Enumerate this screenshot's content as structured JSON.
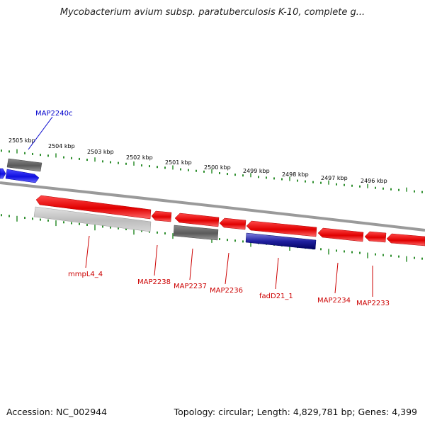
{
  "title": "Mycobacterium avium subsp. paratuberculosis K-10, complete g...",
  "footer": {
    "accession": "Accession: NC_002944",
    "summary": "Topology: circular; Length: 4,829,781 bp; Genes: 4,399"
  },
  "colors": {
    "forward_gene": "#1010e0",
    "reverse_gene": "#e00000",
    "pseudo_gene": "#666666",
    "selected_gene": "#000080",
    "ticks": "#2f8f2f",
    "backbone": "#9a9a9a",
    "label_forward": "#0000cc",
    "label_reverse": "#cc0000"
  },
  "ruler": {
    "labels": [
      "2505 kbp",
      "2504 kbp",
      "2503 kbp",
      "2502 kbp",
      "2501 kbp",
      "2500 kbp",
      "2499 kbp",
      "2498 kbp",
      "2497 kbp",
      "2496 kbp"
    ]
  },
  "genes": [
    {
      "name": "MAP2240c",
      "strand": "forward",
      "labeled": true
    },
    {
      "name": "mmpL4_4",
      "strand": "reverse",
      "labeled": true
    },
    {
      "name": "MAP2238",
      "strand": "reverse",
      "labeled": true
    },
    {
      "name": "MAP2237",
      "strand": "reverse",
      "labeled": true
    },
    {
      "name": "MAP2236",
      "strand": "reverse",
      "labeled": true
    },
    {
      "name": "fadD21_1",
      "strand": "reverse",
      "labeled": true
    },
    {
      "name": "MAP2234",
      "strand": "reverse",
      "labeled": true
    },
    {
      "name": "MAP2233",
      "strand": "reverse",
      "labeled": true
    }
  ]
}
